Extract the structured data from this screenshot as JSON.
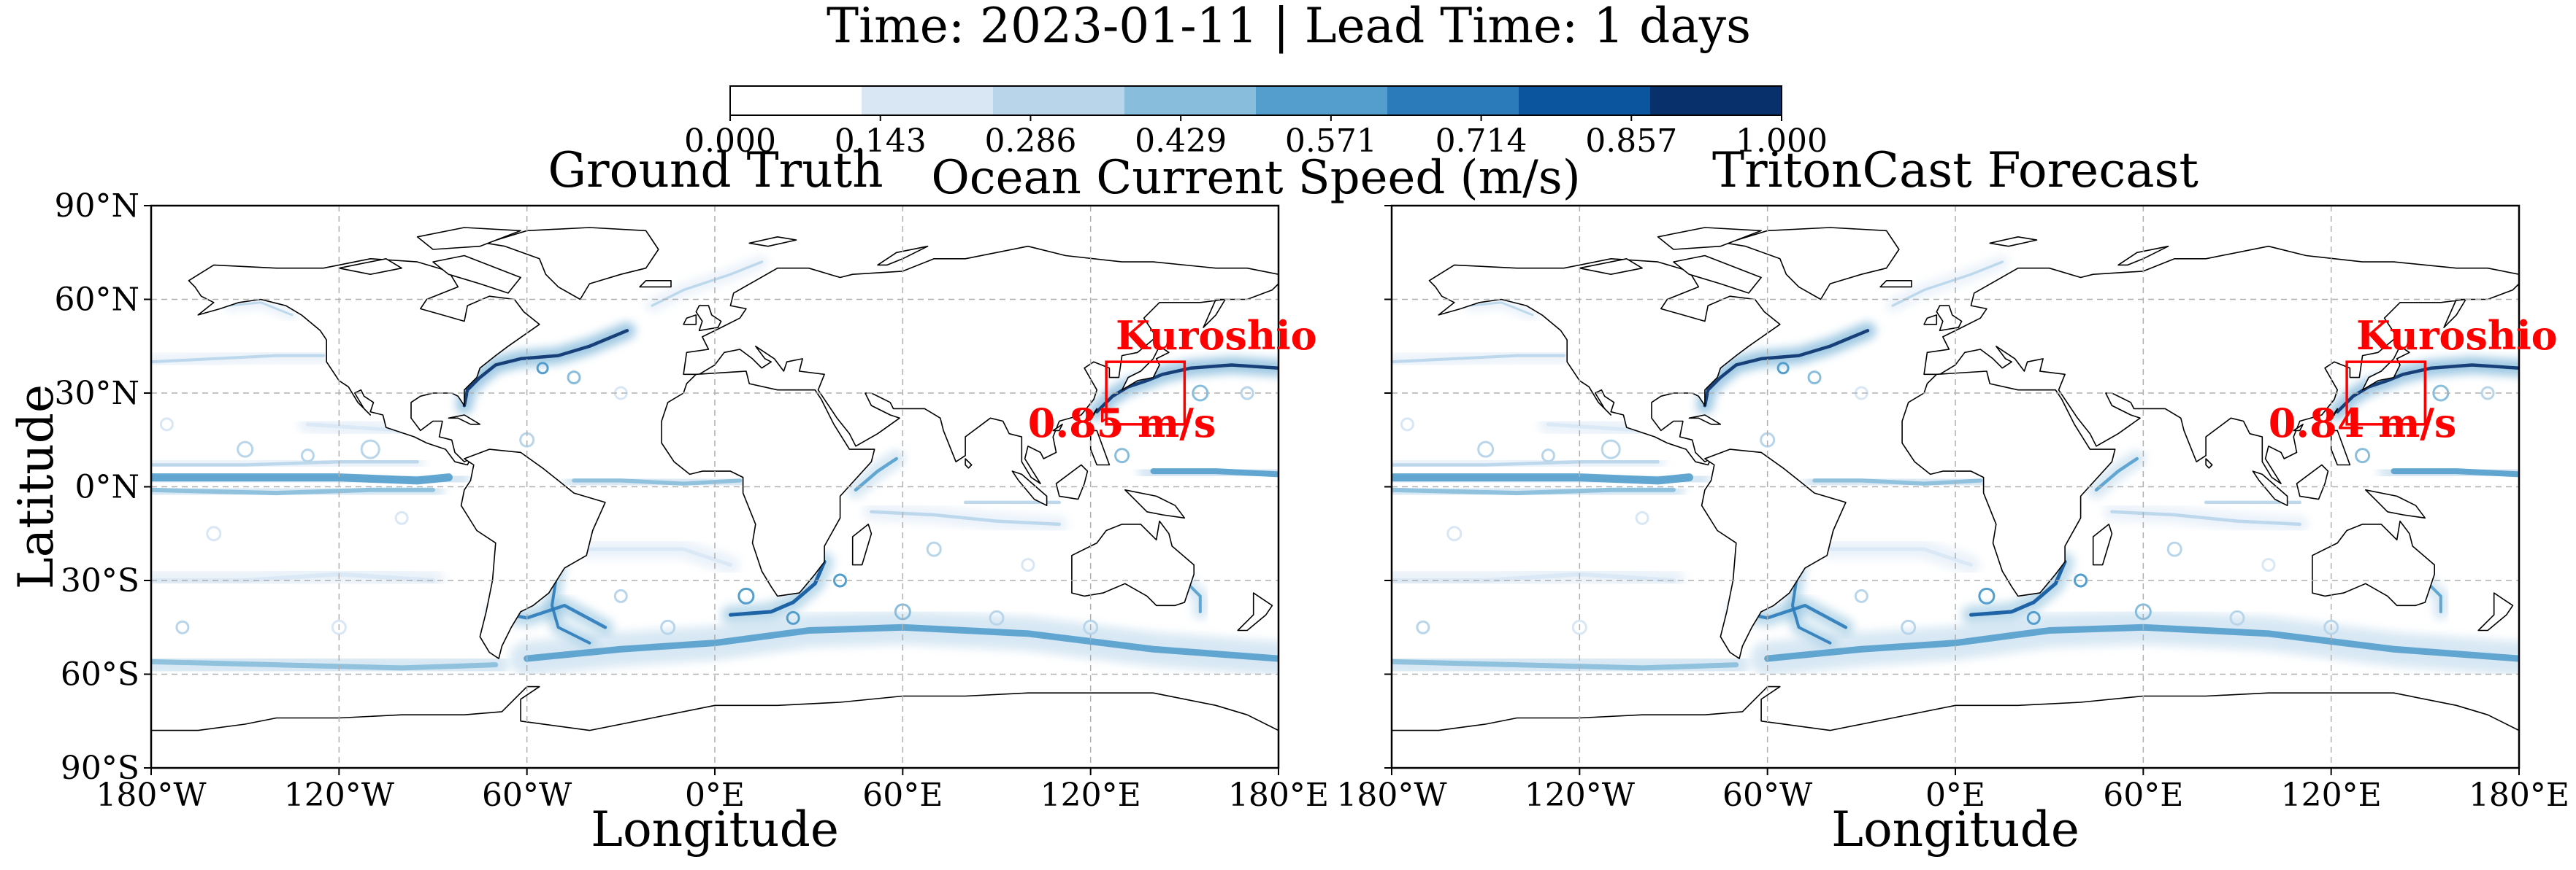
{
  "figure": {
    "suptitle": "Time: 2023-01-11 | Lead Time: 1 days",
    "colorbar": {
      "label": "Ocean Current Speed (m/s)",
      "range": [
        0.0,
        1.0
      ],
      "ticks": [
        "0.000",
        "0.143",
        "0.286",
        "0.429",
        "0.571",
        "0.714",
        "0.857",
        "1.000"
      ],
      "colors": [
        "#ffffff",
        "#d9e7f5",
        "#b8d5ea",
        "#88bedc",
        "#539ecd",
        "#2b7bba",
        "#0b559f",
        "#08306b"
      ]
    },
    "colors": {
      "ocean": "#ffffff",
      "land_outline": "#000000",
      "annotation": "#ff0000",
      "gridline": "#b0b0b0"
    }
  },
  "chart_data": [
    {
      "type": "heatmap",
      "title": "Ground Truth",
      "xlabel": "Longitude",
      "ylabel": "Latitude",
      "xlim": [
        -180,
        180
      ],
      "ylim": [
        -90,
        90
      ],
      "xticks": [
        -180,
        -120,
        -60,
        0,
        60,
        120,
        180
      ],
      "xtick_labels": [
        "180°W",
        "120°W",
        "60°W",
        "0°E",
        "60°E",
        "120°E",
        "180°E"
      ],
      "yticks": [
        90,
        60,
        30,
        0,
        -30,
        -60,
        -90
      ],
      "ytick_labels": [
        "90°N",
        "60°N",
        "30°N",
        "0°N",
        "30°S",
        "60°S",
        "90°S"
      ],
      "grid": true,
      "variable": "ocean current speed (m/s)",
      "color_range": [
        0,
        1
      ],
      "region_box": {
        "name": "Kuroshio",
        "lon_range": [
          125,
          150
        ],
        "lat_range": [
          20,
          40
        ]
      },
      "annotations": [
        {
          "text": "Kuroshio",
          "lon": 128,
          "lat": 44
        },
        {
          "text": "0.85 m/s",
          "lon": 130,
          "lat": 16
        }
      ],
      "highlighted_speed": 0.85
    },
    {
      "type": "heatmap",
      "title": "TritonCast Forecast",
      "xlabel": "Longitude",
      "ylabel": "",
      "xlim": [
        -180,
        180
      ],
      "ylim": [
        -90,
        90
      ],
      "xticks": [
        -180,
        -120,
        -60,
        0,
        60,
        120,
        180
      ],
      "xtick_labels": [
        "180°W",
        "120°W",
        "60°W",
        "0°E",
        "60°E",
        "120°E",
        "180°E"
      ],
      "yticks": [
        90,
        60,
        30,
        0,
        -30,
        -60,
        -90
      ],
      "ytick_labels": [],
      "grid": true,
      "variable": "ocean current speed (m/s)",
      "color_range": [
        0,
        1
      ],
      "region_box": {
        "name": "Kuroshio",
        "lon_range": [
          125,
          150
        ],
        "lat_range": [
          20,
          40
        ]
      },
      "annotations": [
        {
          "text": "Kuroshio",
          "lon": 128,
          "lat": 44
        },
        {
          "text": "0.84 m/s",
          "lon": 130,
          "lat": 16
        }
      ],
      "highlighted_speed": 0.84
    }
  ]
}
